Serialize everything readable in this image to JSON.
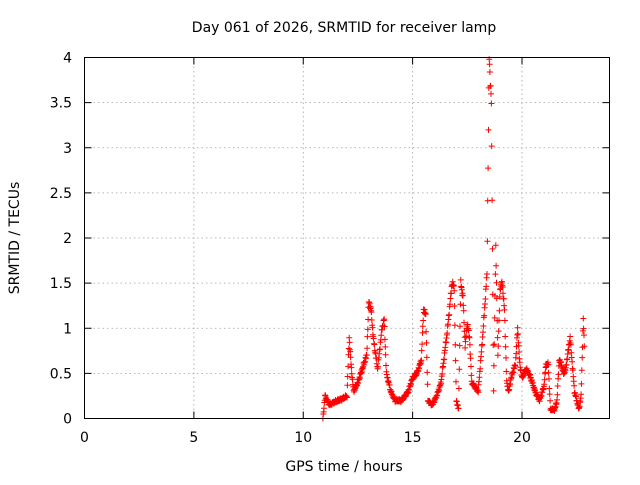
{
  "chart_data": {
    "type": "scatter",
    "title": "Day 061 of 2026, SRMTID for receiver lamp",
    "xlabel": "GPS time / hours",
    "ylabel": "SRMTID / TECUs",
    "xlim": [
      0,
      24
    ],
    "ylim": [
      0,
      4
    ],
    "x_ticks": [
      0,
      5,
      10,
      15,
      20
    ],
    "x_tick_labels": [
      "0",
      "5",
      "10",
      "15",
      "20"
    ],
    "y_ticks": [
      0,
      0.5,
      1,
      1.5,
      2,
      2.5,
      3,
      3.5,
      4
    ],
    "y_tick_labels": [
      "0",
      "0.5",
      "1",
      "1.5",
      "2",
      "2.5",
      "3",
      "3.5",
      "4"
    ],
    "grid": true,
    "marker": "plus",
    "color": "#ff0000",
    "series": [
      {
        "name": "SRMTID",
        "knots": [
          [
            10.9,
            0.0
          ],
          [
            11.0,
            0.25
          ],
          [
            11.2,
            0.15
          ],
          [
            11.4,
            0.18
          ],
          [
            11.6,
            0.2
          ],
          [
            11.8,
            0.22
          ],
          [
            12.0,
            0.25
          ],
          [
            12.1,
            0.9
          ],
          [
            12.2,
            0.55
          ],
          [
            12.3,
            0.3
          ],
          [
            12.5,
            0.4
          ],
          [
            12.7,
            0.55
          ],
          [
            12.9,
            0.7
          ],
          [
            13.0,
            1.3
          ],
          [
            13.1,
            1.2
          ],
          [
            13.2,
            0.9
          ],
          [
            13.4,
            0.55
          ],
          [
            13.6,
            1.0
          ],
          [
            13.7,
            1.1
          ],
          [
            13.8,
            0.5
          ],
          [
            14.0,
            0.3
          ],
          [
            14.2,
            0.2
          ],
          [
            14.5,
            0.2
          ],
          [
            14.8,
            0.3
          ],
          [
            15.0,
            0.45
          ],
          [
            15.2,
            0.5
          ],
          [
            15.4,
            0.65
          ],
          [
            15.5,
            1.2
          ],
          [
            15.6,
            1.15
          ],
          [
            15.7,
            0.2
          ],
          [
            15.9,
            0.15
          ],
          [
            16.1,
            0.25
          ],
          [
            16.3,
            0.4
          ],
          [
            16.6,
            1.0
          ],
          [
            16.8,
            1.5
          ],
          [
            16.9,
            1.45
          ],
          [
            17.0,
            0.2
          ],
          [
            17.1,
            0.1
          ],
          [
            17.2,
            1.5
          ],
          [
            17.3,
            1.35
          ],
          [
            17.4,
            0.8
          ],
          [
            17.5,
            1.05
          ],
          [
            17.6,
            0.9
          ],
          [
            17.7,
            0.4
          ],
          [
            18.0,
            0.3
          ],
          [
            18.2,
            0.9
          ],
          [
            18.4,
            1.6
          ],
          [
            18.5,
            4.0
          ],
          [
            18.6,
            3.5
          ],
          [
            18.7,
            0.3
          ],
          [
            18.8,
            1.9
          ],
          [
            18.9,
            0.7
          ],
          [
            19.0,
            1.45
          ],
          [
            19.1,
            1.5
          ],
          [
            19.2,
            1.2
          ],
          [
            19.3,
            0.4
          ],
          [
            19.4,
            0.3
          ],
          [
            19.5,
            0.45
          ],
          [
            19.7,
            0.6
          ],
          [
            19.8,
            1.0
          ],
          [
            19.9,
            0.6
          ],
          [
            20.0,
            0.45
          ],
          [
            20.2,
            0.55
          ],
          [
            20.4,
            0.45
          ],
          [
            20.6,
            0.3
          ],
          [
            20.8,
            0.2
          ],
          [
            21.0,
            0.35
          ],
          [
            21.1,
            0.6
          ],
          [
            21.2,
            0.6
          ],
          [
            21.3,
            0.1
          ],
          [
            21.5,
            0.1
          ],
          [
            21.6,
            0.2
          ],
          [
            21.7,
            0.65
          ],
          [
            21.8,
            0.6
          ],
          [
            21.9,
            0.5
          ],
          [
            22.0,
            0.55
          ],
          [
            22.2,
            0.9
          ],
          [
            22.4,
            0.3
          ],
          [
            22.6,
            0.1
          ],
          [
            22.7,
            0.25
          ],
          [
            22.8,
            1.1
          ],
          [
            22.85,
            0.8
          ]
        ]
      }
    ]
  }
}
